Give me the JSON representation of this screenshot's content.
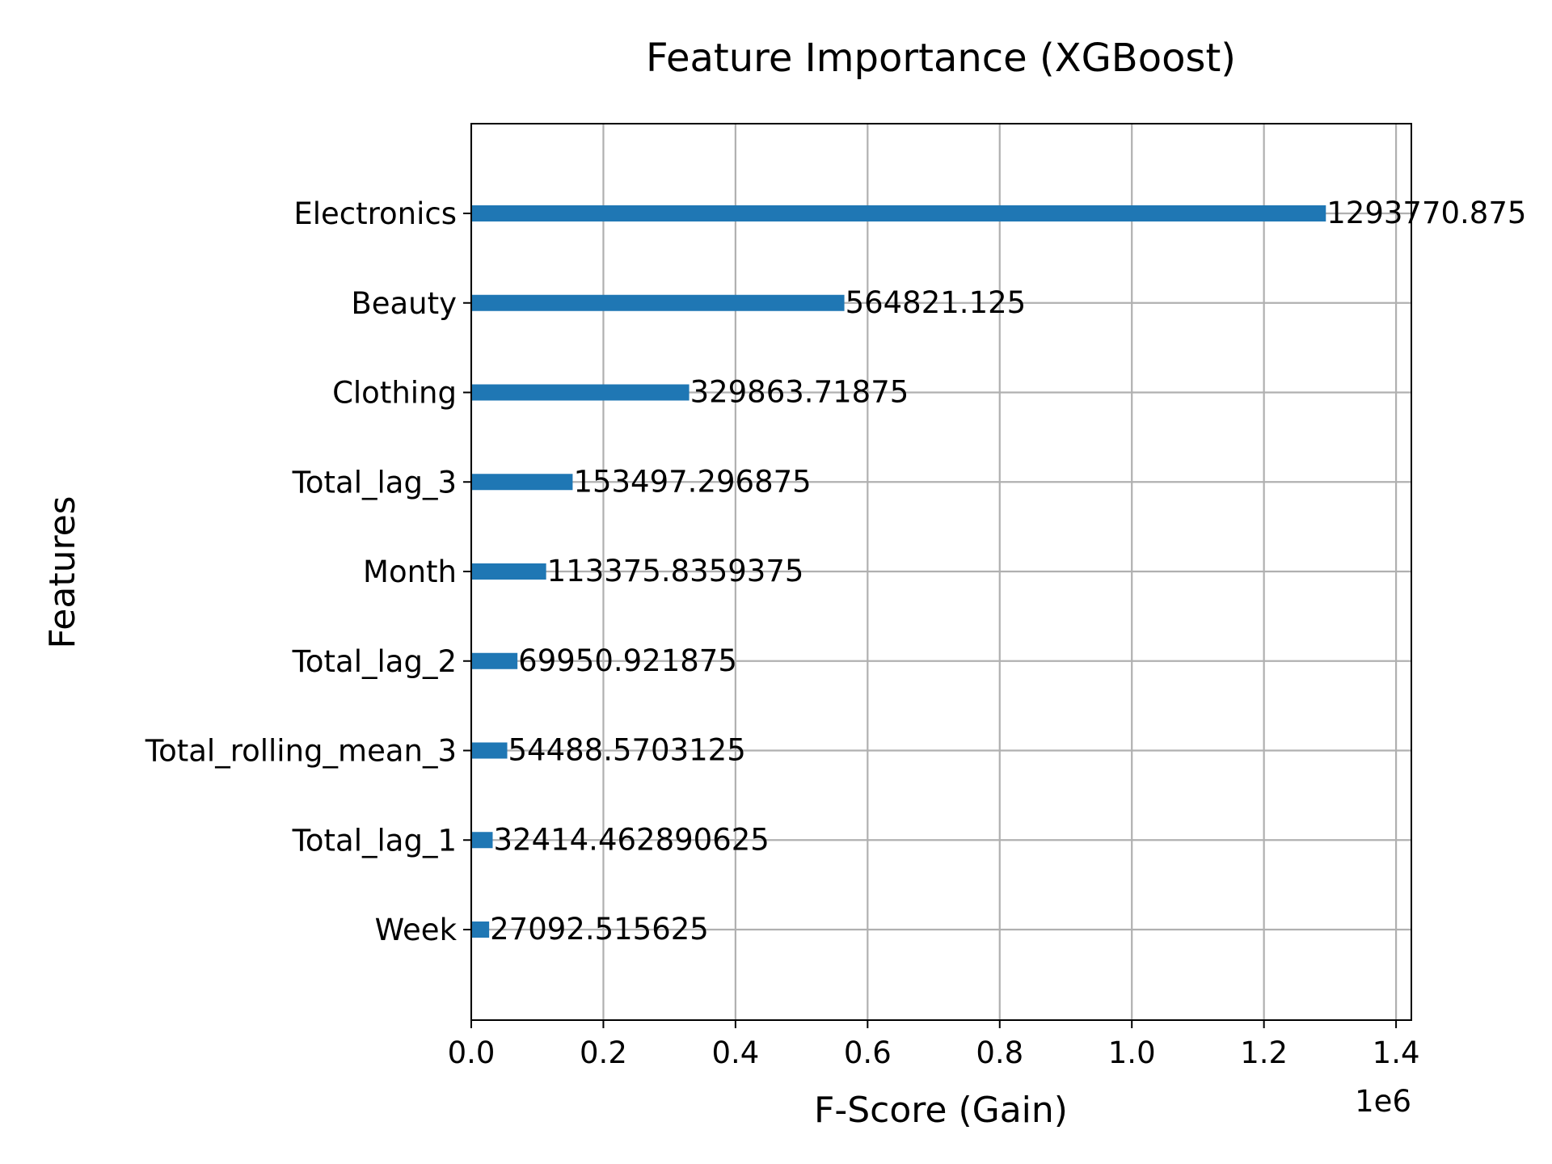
{
  "chart_data": {
    "type": "bar",
    "orientation": "horizontal",
    "title": "Feature Importance (XGBoost)",
    "xlabel": "F-Score (Gain)",
    "ylabel": "Features",
    "x_offset_label": "1e6",
    "x_scale": 1000000,
    "xlim": [
      0,
      1423148
    ],
    "x_ticks": [
      0,
      200000,
      400000,
      600000,
      800000,
      1000000,
      1200000,
      1400000
    ],
    "x_tick_labels": [
      "0.0",
      "0.2",
      "0.4",
      "0.6",
      "0.8",
      "1.0",
      "1.2",
      "1.4"
    ],
    "grid": true,
    "bar_color": "#1f77b4",
    "categories": [
      "Electronics",
      "Beauty",
      "Clothing",
      "Total_lag_3",
      "Month",
      "Total_lag_2",
      "Total_rolling_mean_3",
      "Total_lag_1",
      "Week"
    ],
    "values": [
      1293770.875,
      564821.125,
      329863.71875,
      153497.296875,
      113375.8359375,
      69950.921875,
      54488.5703125,
      32414.462890625,
      27092.515625
    ],
    "value_labels": [
      "1293770.875",
      "564821.125",
      "329863.71875",
      "153497.296875",
      "113375.8359375",
      "69950.921875",
      "54488.5703125",
      "32414.462890625",
      "27092.515625"
    ]
  }
}
